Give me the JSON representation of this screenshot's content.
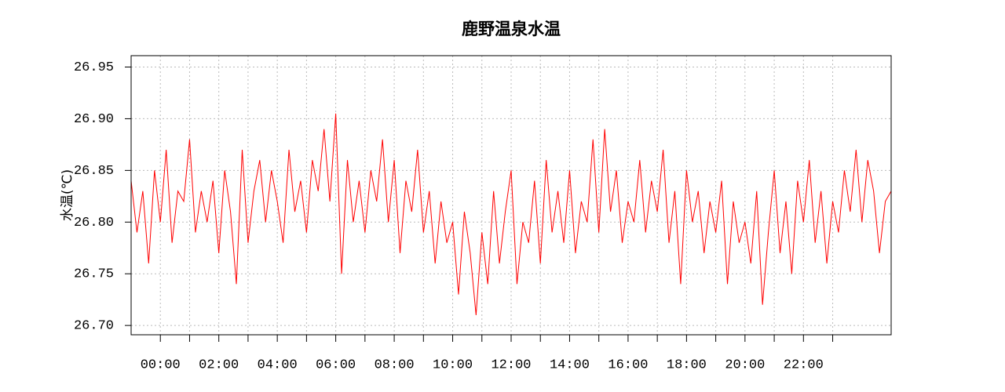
{
  "chart_data": {
    "type": "line",
    "title": "鹿野温泉水温",
    "ylabel": "水温(℃)",
    "color": "#ff0000",
    "grid": true,
    "x": [
      -1,
      -0.8,
      -0.6,
      -0.4,
      -0.2,
      0,
      0.2,
      0.4,
      0.6,
      0.8,
      1,
      1.2,
      1.4,
      1.6,
      1.8,
      2,
      2.2,
      2.4,
      2.6,
      2.8,
      3,
      3.2,
      3.4,
      3.6,
      3.8,
      4,
      4.2,
      4.4,
      4.6,
      4.8,
      5,
      5.2,
      5.4,
      5.6,
      5.8,
      6,
      6.2,
      6.4,
      6.6,
      6.8,
      7,
      7.2,
      7.4,
      7.6,
      7.8,
      8,
      8.2,
      8.4,
      8.6,
      8.8,
      9,
      9.2,
      9.4,
      9.6,
      9.8,
      10,
      10.2,
      10.4,
      10.6,
      10.8,
      11,
      11.2,
      11.4,
      11.6,
      11.8,
      12,
      12.2,
      12.4,
      12.6,
      12.8,
      13,
      13.2,
      13.4,
      13.6,
      13.8,
      14,
      14.2,
      14.4,
      14.6,
      14.8,
      15,
      15.2,
      15.4,
      15.6,
      15.8,
      16,
      16.2,
      16.4,
      16.6,
      16.8,
      17,
      17.2,
      17.4,
      17.6,
      17.8,
      18,
      18.2,
      18.4,
      18.6,
      18.8,
      19,
      19.2,
      19.4,
      19.6,
      19.8,
      20,
      20.2,
      20.4,
      20.6,
      20.8,
      21,
      21.2,
      21.4,
      21.6,
      21.8,
      22,
      22.2,
      22.4,
      22.6,
      22.8,
      23,
      23.2,
      23.4,
      23.6,
      23.8,
      24,
      24.2,
      24.4,
      24.6,
      24.8,
      25
    ],
    "values": [
      26.84,
      26.79,
      26.83,
      26.76,
      26.85,
      26.8,
      26.87,
      26.78,
      26.83,
      26.82,
      26.88,
      26.79,
      26.83,
      26.8,
      26.84,
      26.77,
      26.85,
      26.81,
      26.74,
      26.87,
      26.78,
      26.83,
      26.86,
      26.8,
      26.85,
      26.82,
      26.78,
      26.87,
      26.81,
      26.84,
      26.79,
      26.86,
      26.83,
      26.89,
      26.82,
      26.905,
      26.75,
      26.86,
      26.8,
      26.84,
      26.79,
      26.85,
      26.82,
      26.88,
      26.8,
      26.86,
      26.77,
      26.84,
      26.81,
      26.87,
      26.79,
      26.83,
      26.76,
      26.82,
      26.78,
      26.8,
      26.73,
      26.81,
      26.77,
      26.71,
      26.79,
      26.74,
      26.83,
      26.76,
      26.81,
      26.85,
      26.74,
      26.8,
      26.78,
      26.84,
      26.76,
      26.86,
      26.79,
      26.83,
      26.78,
      26.85,
      26.77,
      26.82,
      26.8,
      26.88,
      26.79,
      26.89,
      26.81,
      26.85,
      26.78,
      26.82,
      26.8,
      26.86,
      26.79,
      26.84,
      26.81,
      26.87,
      26.78,
      26.83,
      26.74,
      26.85,
      26.8,
      26.83,
      26.77,
      26.82,
      26.79,
      26.84,
      26.74,
      26.82,
      26.78,
      26.8,
      26.76,
      26.83,
      26.72,
      26.79,
      26.85,
      26.77,
      26.82,
      26.75,
      26.84,
      26.8,
      26.86,
      26.78,
      26.83,
      26.76,
      26.82,
      26.79,
      26.85,
      26.81,
      26.87,
      26.8,
      26.86,
      26.83,
      26.77,
      26.82,
      26.83
    ],
    "xlim": [
      -1,
      25
    ],
    "ylim": [
      26.691,
      26.961
    ],
    "xticks": [
      {
        "value": 0,
        "label": "00:00"
      },
      {
        "value": 2,
        "label": "02:00"
      },
      {
        "value": 4,
        "label": "04:00"
      },
      {
        "value": 6,
        "label": "06:00"
      },
      {
        "value": 8,
        "label": "08:00"
      },
      {
        "value": 10,
        "label": "10:00"
      },
      {
        "value": 12,
        "label": "12:00"
      },
      {
        "value": 14,
        "label": "14:00"
      },
      {
        "value": 16,
        "label": "16:00"
      },
      {
        "value": 18,
        "label": "18:00"
      },
      {
        "value": 20,
        "label": "20:00"
      },
      {
        "value": 22,
        "label": "22:00"
      }
    ],
    "xminor_ticks": [
      1,
      3,
      5,
      7,
      9,
      11,
      13,
      15,
      17,
      19,
      21,
      23
    ],
    "yticks": [
      {
        "value": 26.7,
        "label": "26.70"
      },
      {
        "value": 26.75,
        "label": "26.75"
      },
      {
        "value": 26.8,
        "label": "26.80"
      },
      {
        "value": 26.85,
        "label": "26.85"
      },
      {
        "value": 26.9,
        "label": "26.90"
      },
      {
        "value": 26.95,
        "label": "26.95"
      }
    ]
  }
}
